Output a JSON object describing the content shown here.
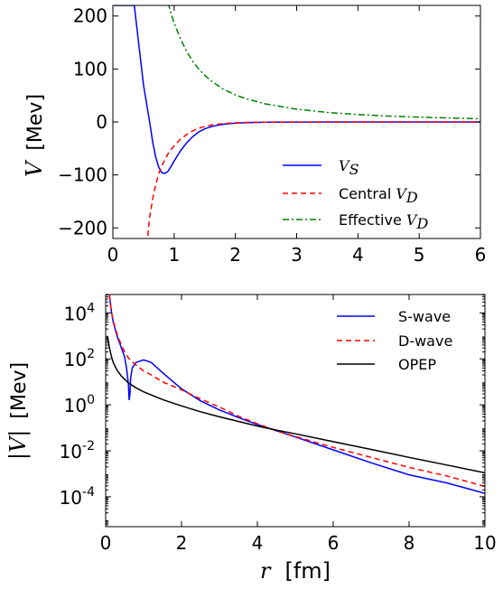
{
  "chart_data": [
    {
      "id": "top",
      "type": "line",
      "title": "",
      "xlim": [
        0,
        6
      ],
      "ylim": [
        -220,
        220
      ],
      "xticks": [
        0,
        1,
        2,
        3,
        4,
        5,
        6
      ],
      "yticks": [
        -200,
        -100,
        0,
        100,
        200
      ],
      "xtick_labels": [
        "0",
        "1",
        "2",
        "3",
        "4",
        "5",
        "6"
      ],
      "ytick_labels": [
        "−200",
        "−100",
        "0",
        "100",
        "200"
      ],
      "ylabel": {
        "var": "V",
        "unit": "[Mev]"
      },
      "xlabel": "",
      "legend_position": "lower-right",
      "series": [
        {
          "name": "V_S",
          "legend_main": "V",
          "legend_sub": "S",
          "color": "#0000ff",
          "dash": "solid",
          "x": [
            0.0,
            0.35,
            0.4,
            0.5,
            0.6,
            0.65,
            0.7,
            0.75,
            0.8,
            0.85,
            0.9,
            0.95,
            1.0,
            1.1,
            1.2,
            1.3,
            1.4,
            1.5,
            1.6,
            1.7,
            1.8,
            1.9,
            2.0,
            2.2,
            2.5,
            3.0,
            4.0,
            5.0,
            6.0
          ],
          "y": [
            220,
            220,
            170,
            70,
            0,
            -38,
            -67,
            -86,
            -96,
            -97,
            -93,
            -84,
            -74,
            -55,
            -40,
            -28,
            -19,
            -13,
            -9,
            -6.5,
            -4.5,
            -3.2,
            -2.3,
            -1.2,
            -0.5,
            -0.1,
            0,
            0,
            0
          ]
        },
        {
          "name": "Central V_D",
          "legend_main": "Central ",
          "legend_var": "V",
          "legend_sub": "D",
          "color": "#ff0000",
          "dash": "dashed",
          "x": [
            0.57,
            0.6,
            0.65,
            0.7,
            0.75,
            0.8,
            0.9,
            1.0,
            1.1,
            1.2,
            1.3,
            1.4,
            1.5,
            1.6,
            1.8,
            2.0,
            2.2,
            2.5,
            3.0,
            4.0,
            5.0,
            6.0
          ],
          "y": [
            -215,
            -180,
            -145,
            -118,
            -97,
            -82,
            -60,
            -45,
            -33,
            -24,
            -17,
            -12,
            -8.5,
            -6,
            -3,
            -1.6,
            -0.8,
            -0.3,
            -0.1,
            0,
            0,
            0
          ]
        },
        {
          "name": "Effective V_D",
          "legend_main": "Effective ",
          "legend_var": "V",
          "legend_sub": "D",
          "color": "#008000",
          "dash": "dashdot",
          "x": [
            0.9,
            0.95,
            1.0,
            1.1,
            1.2,
            1.3,
            1.4,
            1.5,
            1.6,
            1.8,
            2.0,
            2.2,
            2.5,
            3.0,
            3.5,
            4.0,
            4.5,
            5.0,
            5.5,
            6.0
          ],
          "y": [
            225,
            205,
            187,
            158,
            134,
            115,
            100,
            88,
            78,
            62,
            51,
            43,
            34,
            24,
            18,
            14,
            11,
            9,
            7.5,
            6
          ]
        }
      ]
    },
    {
      "id": "bottom",
      "type": "line",
      "yscale": "log",
      "title": "",
      "xlim": [
        0,
        10
      ],
      "ylim_log10": [
        -5.3,
        4.8
      ],
      "xticks": [
        0,
        2,
        4,
        6,
        8,
        10
      ],
      "xtick_labels": [
        "0",
        "2",
        "4",
        "6",
        "8",
        "10"
      ],
      "ytick_exponents": [
        4,
        2,
        0,
        -2,
        -4
      ],
      "ytick_labels": [
        "4",
        "2",
        "0",
        "-2",
        "-4"
      ],
      "ytick_base": "10",
      "ylabel": {
        "var": "|V|",
        "unit": "[Mev]"
      },
      "xlabel": {
        "var": "r",
        "unit": "[fm]"
      },
      "legend_position": "upper-right",
      "series": [
        {
          "name": "S-wave",
          "color": "#0000ff",
          "dash": "solid",
          "x": [
            0.1,
            0.15,
            0.2,
            0.3,
            0.4,
            0.5,
            0.55,
            0.6,
            0.62,
            0.64,
            0.66,
            0.7,
            0.8,
            1.0,
            1.2,
            1.5,
            2.0,
            2.5,
            3.0,
            3.5,
            4.0,
            4.5,
            5.0,
            6.0,
            7.0,
            8.0,
            9.0,
            10.0
          ],
          "y": [
            60000,
            12000,
            4000,
            1000,
            350,
            120,
            40,
            8,
            1.6,
            3,
            15,
            40,
            70,
            90,
            70,
            25,
            5,
            1.5,
            0.6,
            0.28,
            0.14,
            0.075,
            0.04,
            0.011,
            0.003,
            0.0009,
            0.0004,
            0.00014
          ]
        },
        {
          "name": "D-wave",
          "color": "#ff0000",
          "dash": "dashed",
          "x": [
            0.1,
            0.15,
            0.2,
            0.3,
            0.4,
            0.5,
            0.6,
            0.7,
            0.8,
            1.0,
            1.2,
            1.5,
            2.0,
            2.5,
            3.0,
            3.5,
            4.0,
            4.5,
            5.0,
            6.0,
            7.0,
            8.0,
            9.0,
            10.0
          ],
          "y": [
            60000,
            12000,
            4500,
            1200,
            450,
            200,
            110,
            75,
            55,
            30,
            20,
            10,
            4.5,
            1.8,
            0.8,
            0.32,
            0.15,
            0.075,
            0.042,
            0.014,
            0.0052,
            0.0019,
            0.0008,
            0.00028
          ]
        },
        {
          "name": "OPEP",
          "color": "#000000",
          "dash": "solid",
          "x": [
            0.05,
            0.1,
            0.15,
            0.2,
            0.3,
            0.4,
            0.5,
            0.6,
            0.8,
            1.0,
            1.5,
            2.0,
            2.5,
            3.0,
            3.5,
            4.0,
            4.5,
            5.0,
            6.0,
            7.0,
            8.0,
            9.0,
            10.0
          ],
          "y": [
            1000,
            300,
            130,
            70,
            32,
            19,
            13,
            9,
            5.5,
            3.7,
            1.7,
            0.9,
            0.5,
            0.3,
            0.19,
            0.12,
            0.08,
            0.055,
            0.025,
            0.0115,
            0.0052,
            0.0024,
            0.0011
          ]
        }
      ]
    }
  ]
}
